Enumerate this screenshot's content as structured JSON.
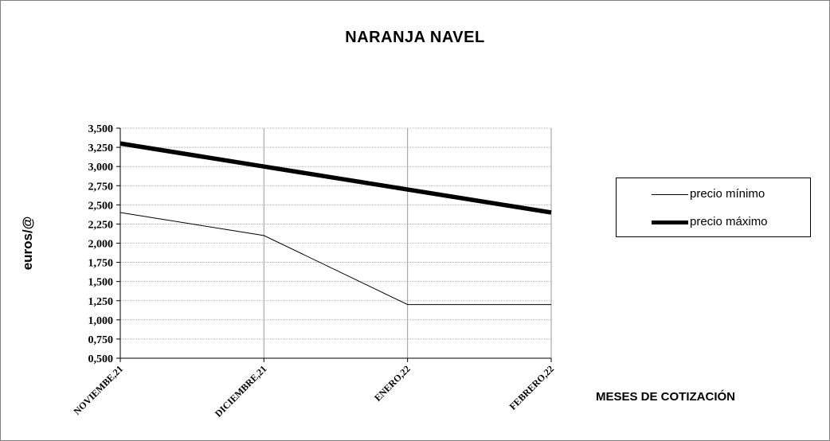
{
  "chart_data": {
    "type": "line",
    "title": "NARANJA  NAVEL",
    "xlabel": "MESES DE COTIZACIÓN",
    "ylabel": "euros/@",
    "categories": [
      "NOVIEMBE,21",
      "DICIEMBRE,21",
      "ENERO,22",
      "FEBRERO,22"
    ],
    "ylim": [
      0.5,
      3.5
    ],
    "yticks": [
      "0,500",
      "0,750",
      "1,000",
      "1,250",
      "1,500",
      "1,750",
      "2,000",
      "2,250",
      "2,500",
      "2,750",
      "3,000",
      "3,250",
      "3,500"
    ],
    "ytick_values": [
      0.5,
      0.75,
      1.0,
      1.25,
      1.5,
      1.75,
      2.0,
      2.25,
      2.5,
      2.75,
      3.0,
      3.25,
      3.5
    ],
    "grid": true,
    "legend_position": "right",
    "series": [
      {
        "name": "precio mínimo",
        "values": [
          2.4,
          2.1,
          1.2,
          1.2
        ],
        "color": "#000000",
        "width": "thin"
      },
      {
        "name": "precio máximo",
        "values": [
          3.3,
          3.0,
          2.7,
          2.4
        ],
        "color": "#000000",
        "width": "thick"
      }
    ]
  }
}
